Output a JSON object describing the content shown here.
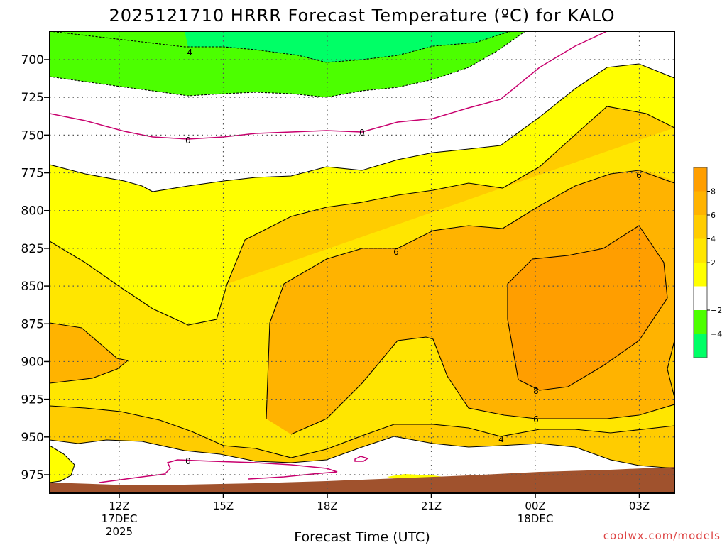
{
  "chart_data": {
    "type": "contour",
    "title": "2025121710 HRRR Forecast Temperature (ºC) for KALO",
    "xlabel": "Forecast Time (UTC)",
    "ylabel": "",
    "credit": "coolwx.com/models",
    "x_ticks": [
      {
        "value": "12Z",
        "sub": [
          "17DEC",
          "2025"
        ]
      },
      {
        "value": "15Z",
        "sub": []
      },
      {
        "value": "18Z",
        "sub": []
      },
      {
        "value": "21Z",
        "sub": []
      },
      {
        "value": "00Z",
        "sub": [
          "18DEC"
        ]
      },
      {
        "value": "03Z",
        "sub": []
      }
    ],
    "y_ticks": [
      700,
      725,
      750,
      775,
      800,
      825,
      850,
      875,
      900,
      925,
      950,
      975
    ],
    "y_reversed": true,
    "grid": true,
    "colorbar": {
      "tick_labels": [
        "8",
        "6",
        "4",
        "2",
        "−2",
        "−4"
      ],
      "colors": {
        "gt8": "#FF9E00",
        "6_8": "#FFB300",
        "4_6": "#FFCC00",
        "2_4": "#FFE600",
        "0_2": "#FFFF00",
        "m2_2": "#FFFFFF",
        "m4_m2": "#4CFF00",
        "lt_m4": "#00FF66"
      }
    },
    "contour_labels": [
      "-4",
      "0",
      "0",
      "6",
      "6",
      "8",
      "6",
      "4",
      "0"
    ],
    "terrain_color": "#A0522D"
  }
}
